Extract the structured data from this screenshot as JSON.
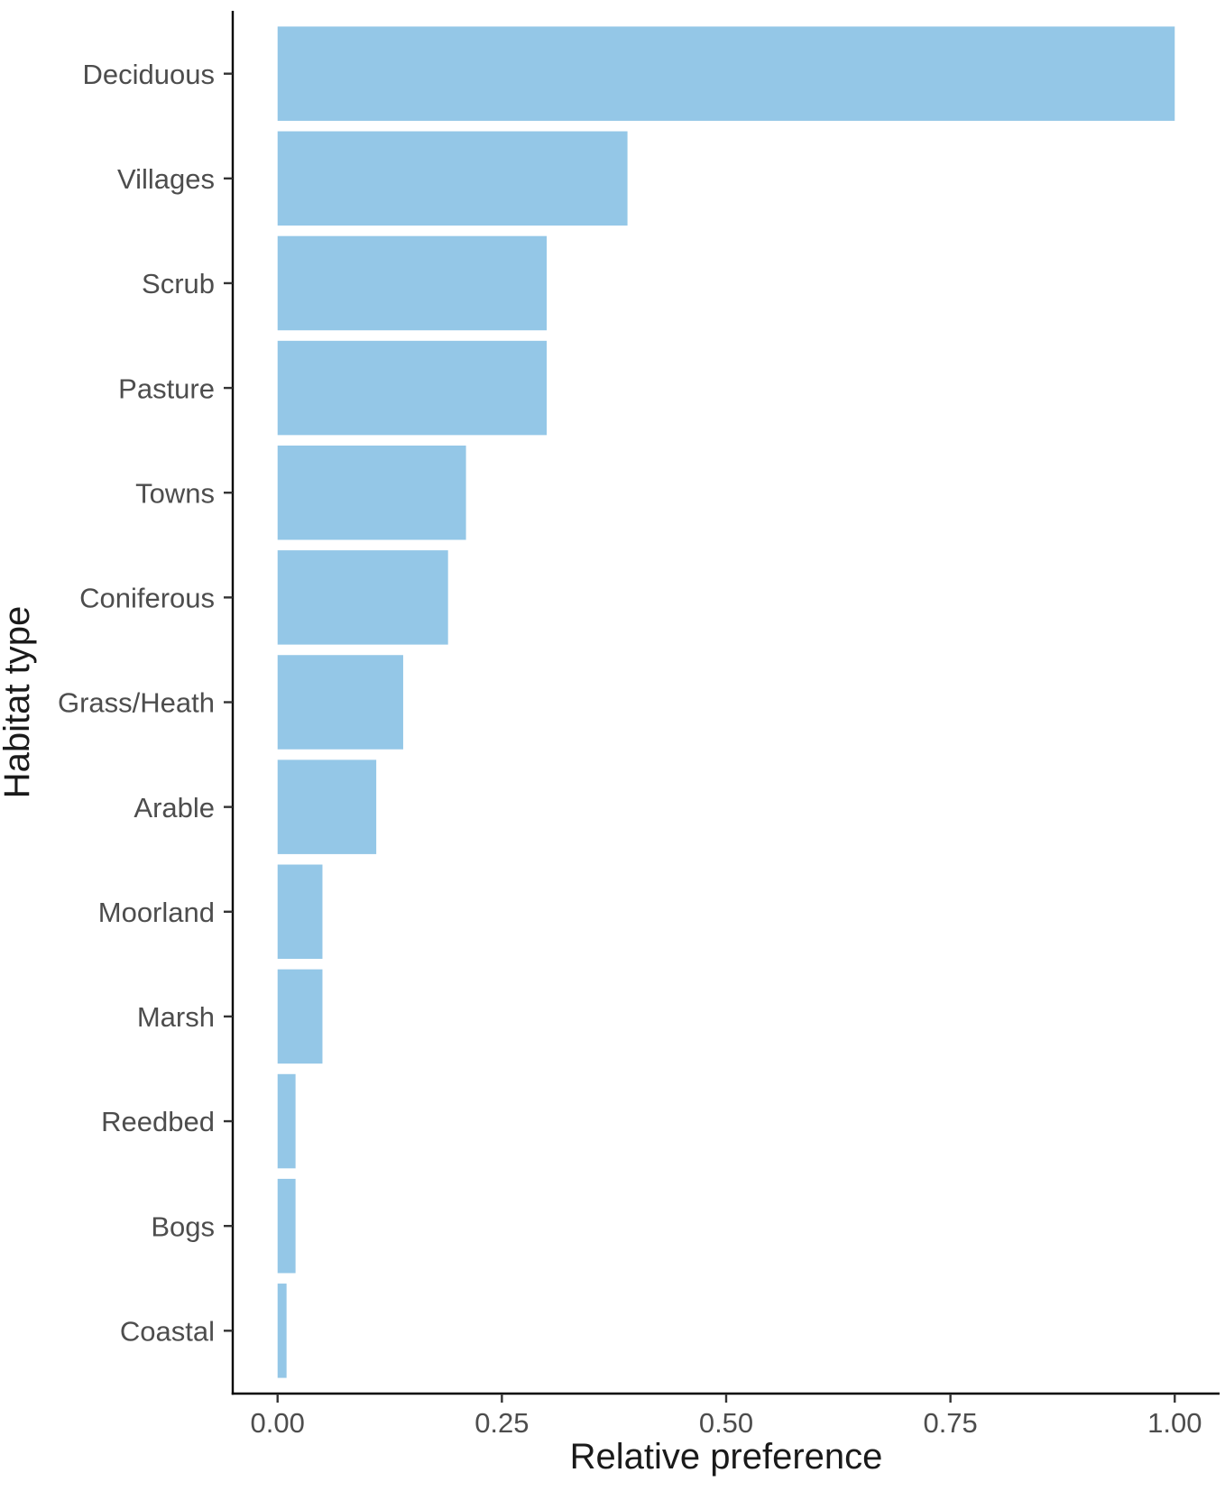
{
  "chart_data": {
    "type": "bar",
    "orientation": "horizontal",
    "categories": [
      "Deciduous",
      "Villages",
      "Scrub",
      "Pasture",
      "Towns",
      "Coniferous",
      "Grass/Heath",
      "Arable",
      "Moorland",
      "Marsh",
      "Reedbed",
      "Bogs",
      "Coastal"
    ],
    "values": [
      1.0,
      0.39,
      0.3,
      0.3,
      0.21,
      0.19,
      0.14,
      0.11,
      0.05,
      0.05,
      0.02,
      0.02,
      0.01
    ],
    "xlabel": "Relative preference",
    "ylabel": "Habitat type",
    "xlim": [
      -0.05,
      1.05
    ],
    "x_ticks": [
      0,
      0.25,
      0.5,
      0.75,
      1
    ],
    "x_tick_labels": [
      "0.00",
      "0.25",
      "0.50",
      "0.75",
      "1.00"
    ],
    "bar_color": "#94c7e7",
    "grid": false,
    "legend": "none"
  }
}
